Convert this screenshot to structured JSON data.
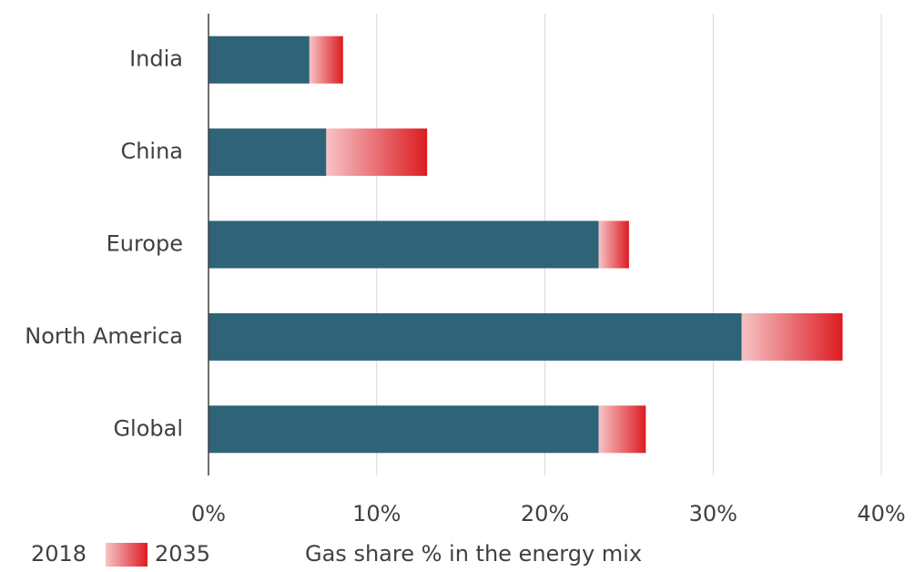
{
  "chart_data": {
    "type": "stacked-barh",
    "categories": [
      "India",
      "China",
      "Europe",
      "North America",
      "Global"
    ],
    "series": [
      {
        "name": "2018",
        "color": "#2e6378",
        "values": [
          6,
          7,
          23.2,
          31.7,
          23.2
        ]
      },
      {
        "name": "2035",
        "color": [
          "#f6c3c6",
          "#dc1c22"
        ],
        "values": [
          2,
          6,
          1.8,
          6,
          2.8
        ]
      }
    ],
    "xlabel": "Gas share % in the energy mix",
    "xlim": [
      0,
      40
    ],
    "xticks": [
      {
        "value": 0,
        "label": "0%"
      },
      {
        "value": 10,
        "label": "10%"
      },
      {
        "value": 20,
        "label": "20%"
      },
      {
        "value": 30,
        "label": "30%"
      },
      {
        "value": 40,
        "label": "40%"
      }
    ],
    "grid": true
  }
}
